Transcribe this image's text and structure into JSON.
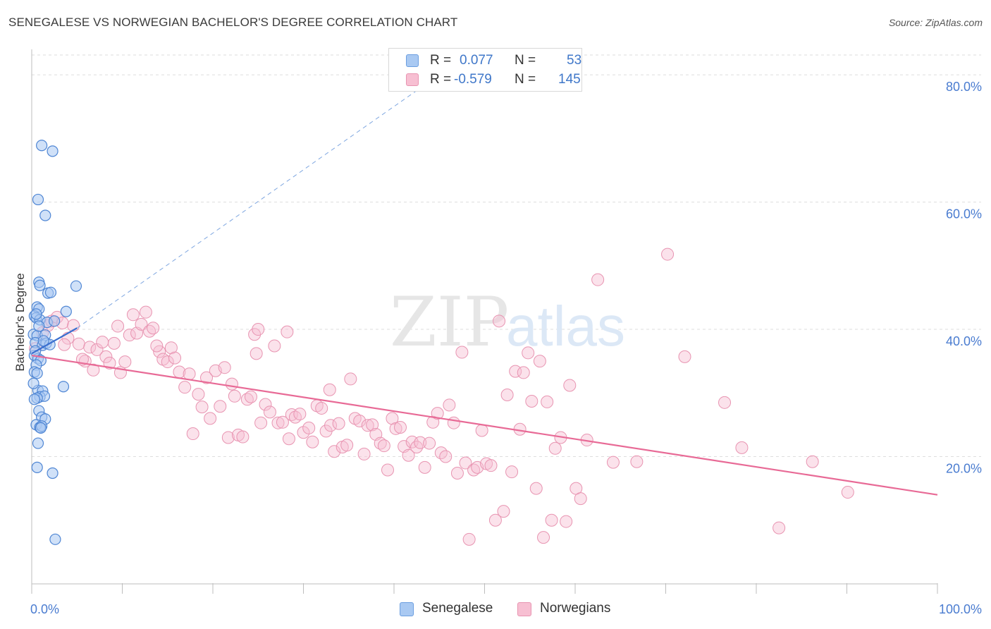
{
  "title": "SENEGALESE VS NORWEGIAN BACHELOR'S DEGREE CORRELATION CHART",
  "source": "Source: ZipAtlas.com",
  "watermark": {
    "zip": "ZIP",
    "atlas": "atlas"
  },
  "legend_top": {
    "rows": [
      {
        "r_label": "R =",
        "r_value": "0.077",
        "n_label": "N =",
        "n_value": "53",
        "color": "#a9c9f2",
        "border": "#6b9ee0"
      },
      {
        "r_label": "R =",
        "r_value": "-0.579",
        "n_label": "N =",
        "n_value": "145",
        "color": "#f7bfd2",
        "border": "#e894b1"
      }
    ]
  },
  "legend_bottom": [
    {
      "label": "Senegalese",
      "color": "#a9c9f2",
      "border": "#6b9ee0"
    },
    {
      "label": "Norwegians",
      "color": "#f7bfd2",
      "border": "#e894b1"
    }
  ],
  "chart_data": {
    "type": "scatter",
    "title": "SENEGALESE VS NORWEGIAN BACHELOR'S DEGREE CORRELATION CHART",
    "xlabel": "",
    "ylabel": "Bachelor's Degree",
    "xlim": [
      0,
      100
    ],
    "ylim": [
      0,
      84
    ],
    "x_tick_labels": [
      {
        "value": 0,
        "label": "0.0%"
      },
      {
        "value": 100,
        "label": "100.0%"
      }
    ],
    "y_tick_labels": [
      {
        "value": 20,
        "label": "20.0%"
      },
      {
        "value": 40,
        "label": "40.0%"
      },
      {
        "value": 60,
        "label": "60.0%"
      },
      {
        "value": 80,
        "label": "80.0%"
      }
    ],
    "grid": "horizontal dashed",
    "colors": {
      "senegalese": "#6b9ee0",
      "senegalese_line": "#3a6fcf",
      "norwegians": "#e894b1",
      "norwegians_line": "#e86a96",
      "tick_text": "#4a7cd0"
    },
    "series": [
      {
        "name": "Senegalese",
        "points": [
          [
            1.1,
            68.9
          ],
          [
            2.3,
            68.0
          ],
          [
            0.7,
            60.4
          ],
          [
            1.5,
            57.9
          ],
          [
            0.8,
            47.4
          ],
          [
            0.9,
            46.9
          ],
          [
            1.8,
            45.7
          ],
          [
            2.1,
            45.8
          ],
          [
            4.9,
            46.8
          ],
          [
            0.6,
            43.5
          ],
          [
            0.8,
            43.2
          ],
          [
            3.8,
            42.8
          ],
          [
            0.3,
            42.1
          ],
          [
            0.5,
            41.8
          ],
          [
            0.9,
            41.5
          ],
          [
            1.7,
            41.1
          ],
          [
            2.5,
            41.3
          ],
          [
            0.2,
            39.2
          ],
          [
            0.6,
            39.0
          ],
          [
            1.5,
            39.1
          ],
          [
            0.4,
            37.9
          ],
          [
            1.2,
            37.5
          ],
          [
            1.6,
            37.8
          ],
          [
            2.0,
            37.6
          ],
          [
            0.3,
            35.9
          ],
          [
            0.7,
            35.4
          ],
          [
            1.0,
            35.1
          ],
          [
            0.5,
            34.4
          ],
          [
            0.3,
            33.3
          ],
          [
            0.6,
            33.1
          ],
          [
            3.5,
            31.0
          ],
          [
            0.7,
            30.4
          ],
          [
            1.2,
            30.3
          ],
          [
            0.9,
            29.4
          ],
          [
            1.4,
            29.5
          ],
          [
            0.6,
            29.2
          ],
          [
            0.8,
            27.2
          ],
          [
            1.1,
            26.2
          ],
          [
            1.5,
            25.9
          ],
          [
            0.5,
            25.0
          ],
          [
            0.9,
            24.6
          ],
          [
            1.1,
            24.8
          ],
          [
            0.7,
            22.1
          ],
          [
            0.6,
            18.3
          ],
          [
            2.3,
            17.4
          ],
          [
            2.6,
            7.0
          ],
          [
            0.4,
            36.6
          ],
          [
            0.2,
            31.5
          ],
          [
            0.5,
            42.4
          ],
          [
            0.8,
            40.5
          ],
          [
            1.3,
            38.2
          ],
          [
            0.3,
            29.0
          ],
          [
            1.0,
            24.5
          ]
        ],
        "trend": {
          "x": [
            0,
            5
          ],
          "y": [
            36.2,
            40.2
          ]
        },
        "trend_extended": {
          "x": [
            5,
            45
          ],
          "y": [
            40.2,
            80
          ]
        }
      },
      {
        "name": "Norwegians",
        "points": [
          [
            0.4,
            37.0
          ],
          [
            1.2,
            39.5
          ],
          [
            1.8,
            40.6
          ],
          [
            2.2,
            41.3
          ],
          [
            2.8,
            41.9
          ],
          [
            3.4,
            41.0
          ],
          [
            4.0,
            38.6
          ],
          [
            4.6,
            40.6
          ],
          [
            3.6,
            37.6
          ],
          [
            5.2,
            37.7
          ],
          [
            5.9,
            35.0
          ],
          [
            6.4,
            37.2
          ],
          [
            7.2,
            36.8
          ],
          [
            7.8,
            38.0
          ],
          [
            8.2,
            35.7
          ],
          [
            8.6,
            34.7
          ],
          [
            9.1,
            37.8
          ],
          [
            9.5,
            40.5
          ],
          [
            9.8,
            33.2
          ],
          [
            10.3,
            34.9
          ],
          [
            10.8,
            39.1
          ],
          [
            11.2,
            42.3
          ],
          [
            11.6,
            39.4
          ],
          [
            12.1,
            40.8
          ],
          [
            12.6,
            42.7
          ],
          [
            13.0,
            39.7
          ],
          [
            13.4,
            40.2
          ],
          [
            14.1,
            36.5
          ],
          [
            14.5,
            35.3
          ],
          [
            15.0,
            34.9
          ],
          [
            15.4,
            37.1
          ],
          [
            15.8,
            35.5
          ],
          [
            16.3,
            33.3
          ],
          [
            16.9,
            30.9
          ],
          [
            17.4,
            33.0
          ],
          [
            17.8,
            23.6
          ],
          [
            18.4,
            29.8
          ],
          [
            18.8,
            27.8
          ],
          [
            19.3,
            32.4
          ],
          [
            19.7,
            26.0
          ],
          [
            20.3,
            33.5
          ],
          [
            20.8,
            27.9
          ],
          [
            21.3,
            34.0
          ],
          [
            21.7,
            23.0
          ],
          [
            22.4,
            29.5
          ],
          [
            22.8,
            23.4
          ],
          [
            23.3,
            23.1
          ],
          [
            23.8,
            29.0
          ],
          [
            24.2,
            29.4
          ],
          [
            24.6,
            39.2
          ],
          [
            25.0,
            40.0
          ],
          [
            25.3,
            25.3
          ],
          [
            25.8,
            28.2
          ],
          [
            26.3,
            27.0
          ],
          [
            26.8,
            37.4
          ],
          [
            27.2,
            25.3
          ],
          [
            27.7,
            25.4
          ],
          [
            28.2,
            39.6
          ],
          [
            28.7,
            26.6
          ],
          [
            29.1,
            26.2
          ],
          [
            29.6,
            26.7
          ],
          [
            30.0,
            23.8
          ],
          [
            30.6,
            24.5
          ],
          [
            31.0,
            22.3
          ],
          [
            31.5,
            28.0
          ],
          [
            32.0,
            27.6
          ],
          [
            32.5,
            24.0
          ],
          [
            33.0,
            24.9
          ],
          [
            33.4,
            20.8
          ],
          [
            33.9,
            25.2
          ],
          [
            34.3,
            21.5
          ],
          [
            34.8,
            21.8
          ],
          [
            35.2,
            32.2
          ],
          [
            35.7,
            26.0
          ],
          [
            36.2,
            25.6
          ],
          [
            36.7,
            20.4
          ],
          [
            37.1,
            24.9
          ],
          [
            37.6,
            25.0
          ],
          [
            38.0,
            23.5
          ],
          [
            38.5,
            22.1
          ],
          [
            38.9,
            21.7
          ],
          [
            39.3,
            17.9
          ],
          [
            39.8,
            26.0
          ],
          [
            40.2,
            24.4
          ],
          [
            40.7,
            24.6
          ],
          [
            41.1,
            21.6
          ],
          [
            41.6,
            20.2
          ],
          [
            42.0,
            22.3
          ],
          [
            42.5,
            21.5
          ],
          [
            42.9,
            22.2
          ],
          [
            43.4,
            18.3
          ],
          [
            43.9,
            22.1
          ],
          [
            44.3,
            25.4
          ],
          [
            44.8,
            26.8
          ],
          [
            45.2,
            20.6
          ],
          [
            45.7,
            20.0
          ],
          [
            46.1,
            28.1
          ],
          [
            46.6,
            25.3
          ],
          [
            47.0,
            17.4
          ],
          [
            47.5,
            36.4
          ],
          [
            47.9,
            19.0
          ],
          [
            48.3,
            7.0
          ],
          [
            48.8,
            17.9
          ],
          [
            49.2,
            18.3
          ],
          [
            49.7,
            24.1
          ],
          [
            50.2,
            18.9
          ],
          [
            50.7,
            18.6
          ],
          [
            51.2,
            10.0
          ],
          [
            51.6,
            41.3
          ],
          [
            52.1,
            11.4
          ],
          [
            52.5,
            29.7
          ],
          [
            53.0,
            17.6
          ],
          [
            53.4,
            33.4
          ],
          [
            53.9,
            24.3
          ],
          [
            54.3,
            33.2
          ],
          [
            54.8,
            36.3
          ],
          [
            55.2,
            28.7
          ],
          [
            55.7,
            15.0
          ],
          [
            56.1,
            35.0
          ],
          [
            56.5,
            7.3
          ],
          [
            56.9,
            28.6
          ],
          [
            57.4,
            10.0
          ],
          [
            57.8,
            21.3
          ],
          [
            58.4,
            23.0
          ],
          [
            59.0,
            9.8
          ],
          [
            59.4,
            31.2
          ],
          [
            60.1,
            15.0
          ],
          [
            60.6,
            13.4
          ],
          [
            61.3,
            22.6
          ],
          [
            62.5,
            47.8
          ],
          [
            64.2,
            19.1
          ],
          [
            66.8,
            19.2
          ],
          [
            70.2,
            51.8
          ],
          [
            72.1,
            35.7
          ],
          [
            76.5,
            28.5
          ],
          [
            78.4,
            21.4
          ],
          [
            82.5,
            8.8
          ],
          [
            86.2,
            19.2
          ],
          [
            90.1,
            14.4
          ],
          [
            5.6,
            35.3
          ],
          [
            6.8,
            33.6
          ],
          [
            13.8,
            37.4
          ],
          [
            22.1,
            31.4
          ],
          [
            24.8,
            36.2
          ],
          [
            28.4,
            22.8
          ],
          [
            32.9,
            30.5
          ]
        ],
        "trend": {
          "x": [
            0,
            100
          ],
          "y": [
            35.9,
            14.0
          ]
        }
      }
    ]
  }
}
